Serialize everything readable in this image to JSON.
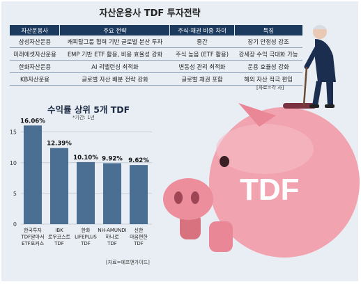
{
  "title": "자산운용사 TDF 투자전략",
  "table": {
    "headers": [
      "자산운용사",
      "주요 전략",
      "주식·채권 비중 차이",
      "특징"
    ],
    "rows": [
      [
        "삼성자산운용",
        "캐피탈그룹 협력 기반 글로벌 분산 투자",
        "중간",
        "장기 안정성 강조"
      ],
      [
        "미래에셋자산운용",
        "EMP 기반 ETF 활용, 비용 효율성 강화",
        "주식 높음 (ETF 활용)",
        "강세장 수익 극대화 가능"
      ],
      [
        "한화자산운용",
        "AI 리밸런싱 최적화",
        "변동성 관리 최적화",
        "운용 효율성 강화"
      ],
      [
        "KB자산운용",
        "글로벌 자산 배분 전략 강화",
        "글로벌 채권 포함",
        "해외 자산 적극 편입"
      ]
    ],
    "source": "[자료=각 사]"
  },
  "chart": {
    "title": "수익률 상위 5개 TDF",
    "subtitle": "*기간: 1년",
    "source": "[자료=에프앤가이드]"
  },
  "illustration": {
    "piggy_text": "TDF"
  },
  "colors": {
    "header_bg": "#1b3a5e",
    "bar": "#4a6f93",
    "pig": "#f0a0ad",
    "panel_bg": "#e9eef4"
  },
  "chart_data": {
    "type": "bar",
    "categories": [
      [
        "한국투자",
        "TDF알아서",
        "ETF포커스"
      ],
      [
        "IBK",
        "로우코스트",
        "TDF"
      ],
      [
        "한화",
        "LIFEPLUS",
        "TDF"
      ],
      [
        "NH-AMUNDI",
        "하나로",
        "TDF"
      ],
      [
        "신한",
        "마음편한",
        "TDF"
      ]
    ],
    "values": [
      16.06,
      12.39,
      10.1,
      9.92,
      9.62
    ],
    "value_labels": [
      "16.06%",
      "12.39%",
      "10.10%",
      "9.92%",
      "9.62%"
    ],
    "yticks": [
      "0",
      "5",
      "10",
      "15"
    ],
    "ylim": [
      0,
      17
    ],
    "grid": true
  }
}
